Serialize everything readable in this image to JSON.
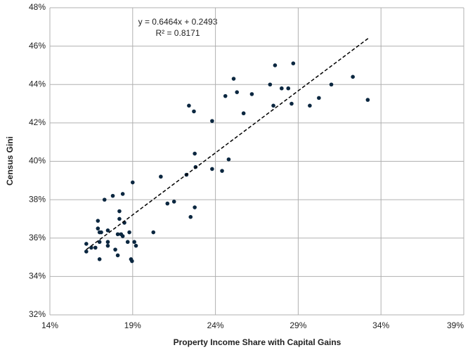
{
  "chart_data": {
    "type": "scatter",
    "x_label": "Property Income Share with  Capital Gains",
    "y_label": "Census Gini",
    "annotations": [
      "y = 0.6464x + 0.2493",
      "R² = 0.8171"
    ],
    "xlim": [
      14,
      39
    ],
    "ylim": [
      32,
      48
    ],
    "xticks": [
      {
        "value": 14,
        "label": "14%"
      },
      {
        "value": 19,
        "label": "19%"
      },
      {
        "value": 24,
        "label": "24%"
      },
      {
        "value": 29,
        "label": "29%"
      },
      {
        "value": 34,
        "label": "34%"
      },
      {
        "value": 39,
        "label": "39%"
      }
    ],
    "yticks": [
      {
        "value": 32,
        "label": "32%"
      },
      {
        "value": 34,
        "label": "34%"
      },
      {
        "value": 36,
        "label": "36%"
      },
      {
        "value": 38,
        "label": "38%"
      },
      {
        "value": 40,
        "label": "40%"
      },
      {
        "value": 42,
        "label": "42%"
      },
      {
        "value": 44,
        "label": "44%"
      },
      {
        "value": 46,
        "label": "46%"
      },
      {
        "value": 48,
        "label": "48%"
      }
    ],
    "grid": true,
    "color": "#0b2740",
    "x": [
      16.2,
      16.2,
      16.5,
      16.75,
      16.9,
      16.9,
      17.0,
      17.0,
      17.0,
      17.1,
      17.3,
      17.5,
      17.5,
      17.5,
      17.8,
      17.95,
      18.1,
      18.1,
      18.2,
      18.2,
      18.3,
      18.4,
      18.4,
      18.5,
      18.7,
      18.8,
      18.9,
      18.96,
      19.0,
      19.1,
      19.2,
      20.25,
      20.7,
      21.1,
      21.5,
      22.25,
      22.4,
      22.5,
      22.7,
      22.75,
      22.75,
      22.8,
      23.8,
      23.8,
      24.4,
      24.6,
      24.8,
      25.1,
      25.3,
      25.7,
      26.2,
      27.3,
      27.5,
      27.6,
      28.0,
      28.4,
      28.6,
      28.7,
      29.7,
      30.25,
      31.0,
      32.3,
      33.2
    ],
    "values": [
      35.7,
      35.3,
      35.5,
      35.5,
      36.9,
      36.5,
      36.3,
      35.8,
      34.9,
      36.3,
      38.0,
      35.8,
      35.6,
      36.4,
      38.2,
      35.4,
      36.2,
      35.1,
      37.4,
      37.0,
      36.2,
      38.3,
      36.1,
      36.8,
      35.8,
      36.3,
      34.9,
      34.8,
      38.9,
      35.8,
      35.6,
      36.3,
      39.2,
      37.8,
      37.9,
      39.3,
      42.9,
      37.1,
      42.6,
      40.4,
      37.6,
      39.7,
      42.1,
      39.6,
      39.5,
      43.4,
      40.1,
      44.3,
      43.6,
      42.5,
      43.5,
      44.0,
      42.9,
      45.0,
      43.8,
      43.8,
      43.0,
      45.1,
      42.9,
      43.3,
      44.0,
      44.4,
      43.2
    ],
    "trendline": {
      "x": [
        16.2,
        33.3
      ],
      "y": [
        35.4,
        46.45
      ]
    }
  }
}
